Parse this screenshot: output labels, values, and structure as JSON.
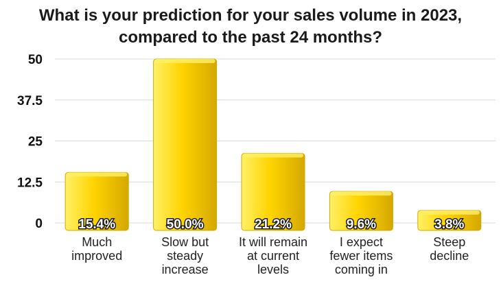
{
  "chart_data": {
    "type": "bar",
    "title_lines": [
      "What is your prediction for your sales volume in 2023,",
      "compared to the past 24 months?"
    ],
    "categories": [
      [
        "Much",
        "improved"
      ],
      [
        "Slow but",
        "steady",
        "increase"
      ],
      [
        "It will remain",
        "at current",
        "levels"
      ],
      [
        "I expect",
        "fewer items",
        "coming in"
      ],
      [
        "Steep",
        "decline"
      ]
    ],
    "values": [
      15.4,
      50.0,
      21.2,
      9.6,
      3.8
    ],
    "data_labels": [
      "15.4%",
      "50.0%",
      "21.2%",
      "9.6%",
      "3.8%"
    ],
    "yticks": [
      "0",
      "12.5",
      "25",
      "37.5",
      "50"
    ],
    "ylim": [
      0,
      50
    ],
    "grid": true,
    "legend": "none",
    "colors": {
      "bar": "#ffd400",
      "bar_highlight": "#fff066",
      "bar_shadow": "#d4a800",
      "label_text": "#ffffff",
      "label_outline": "#1a1a1a"
    }
  }
}
